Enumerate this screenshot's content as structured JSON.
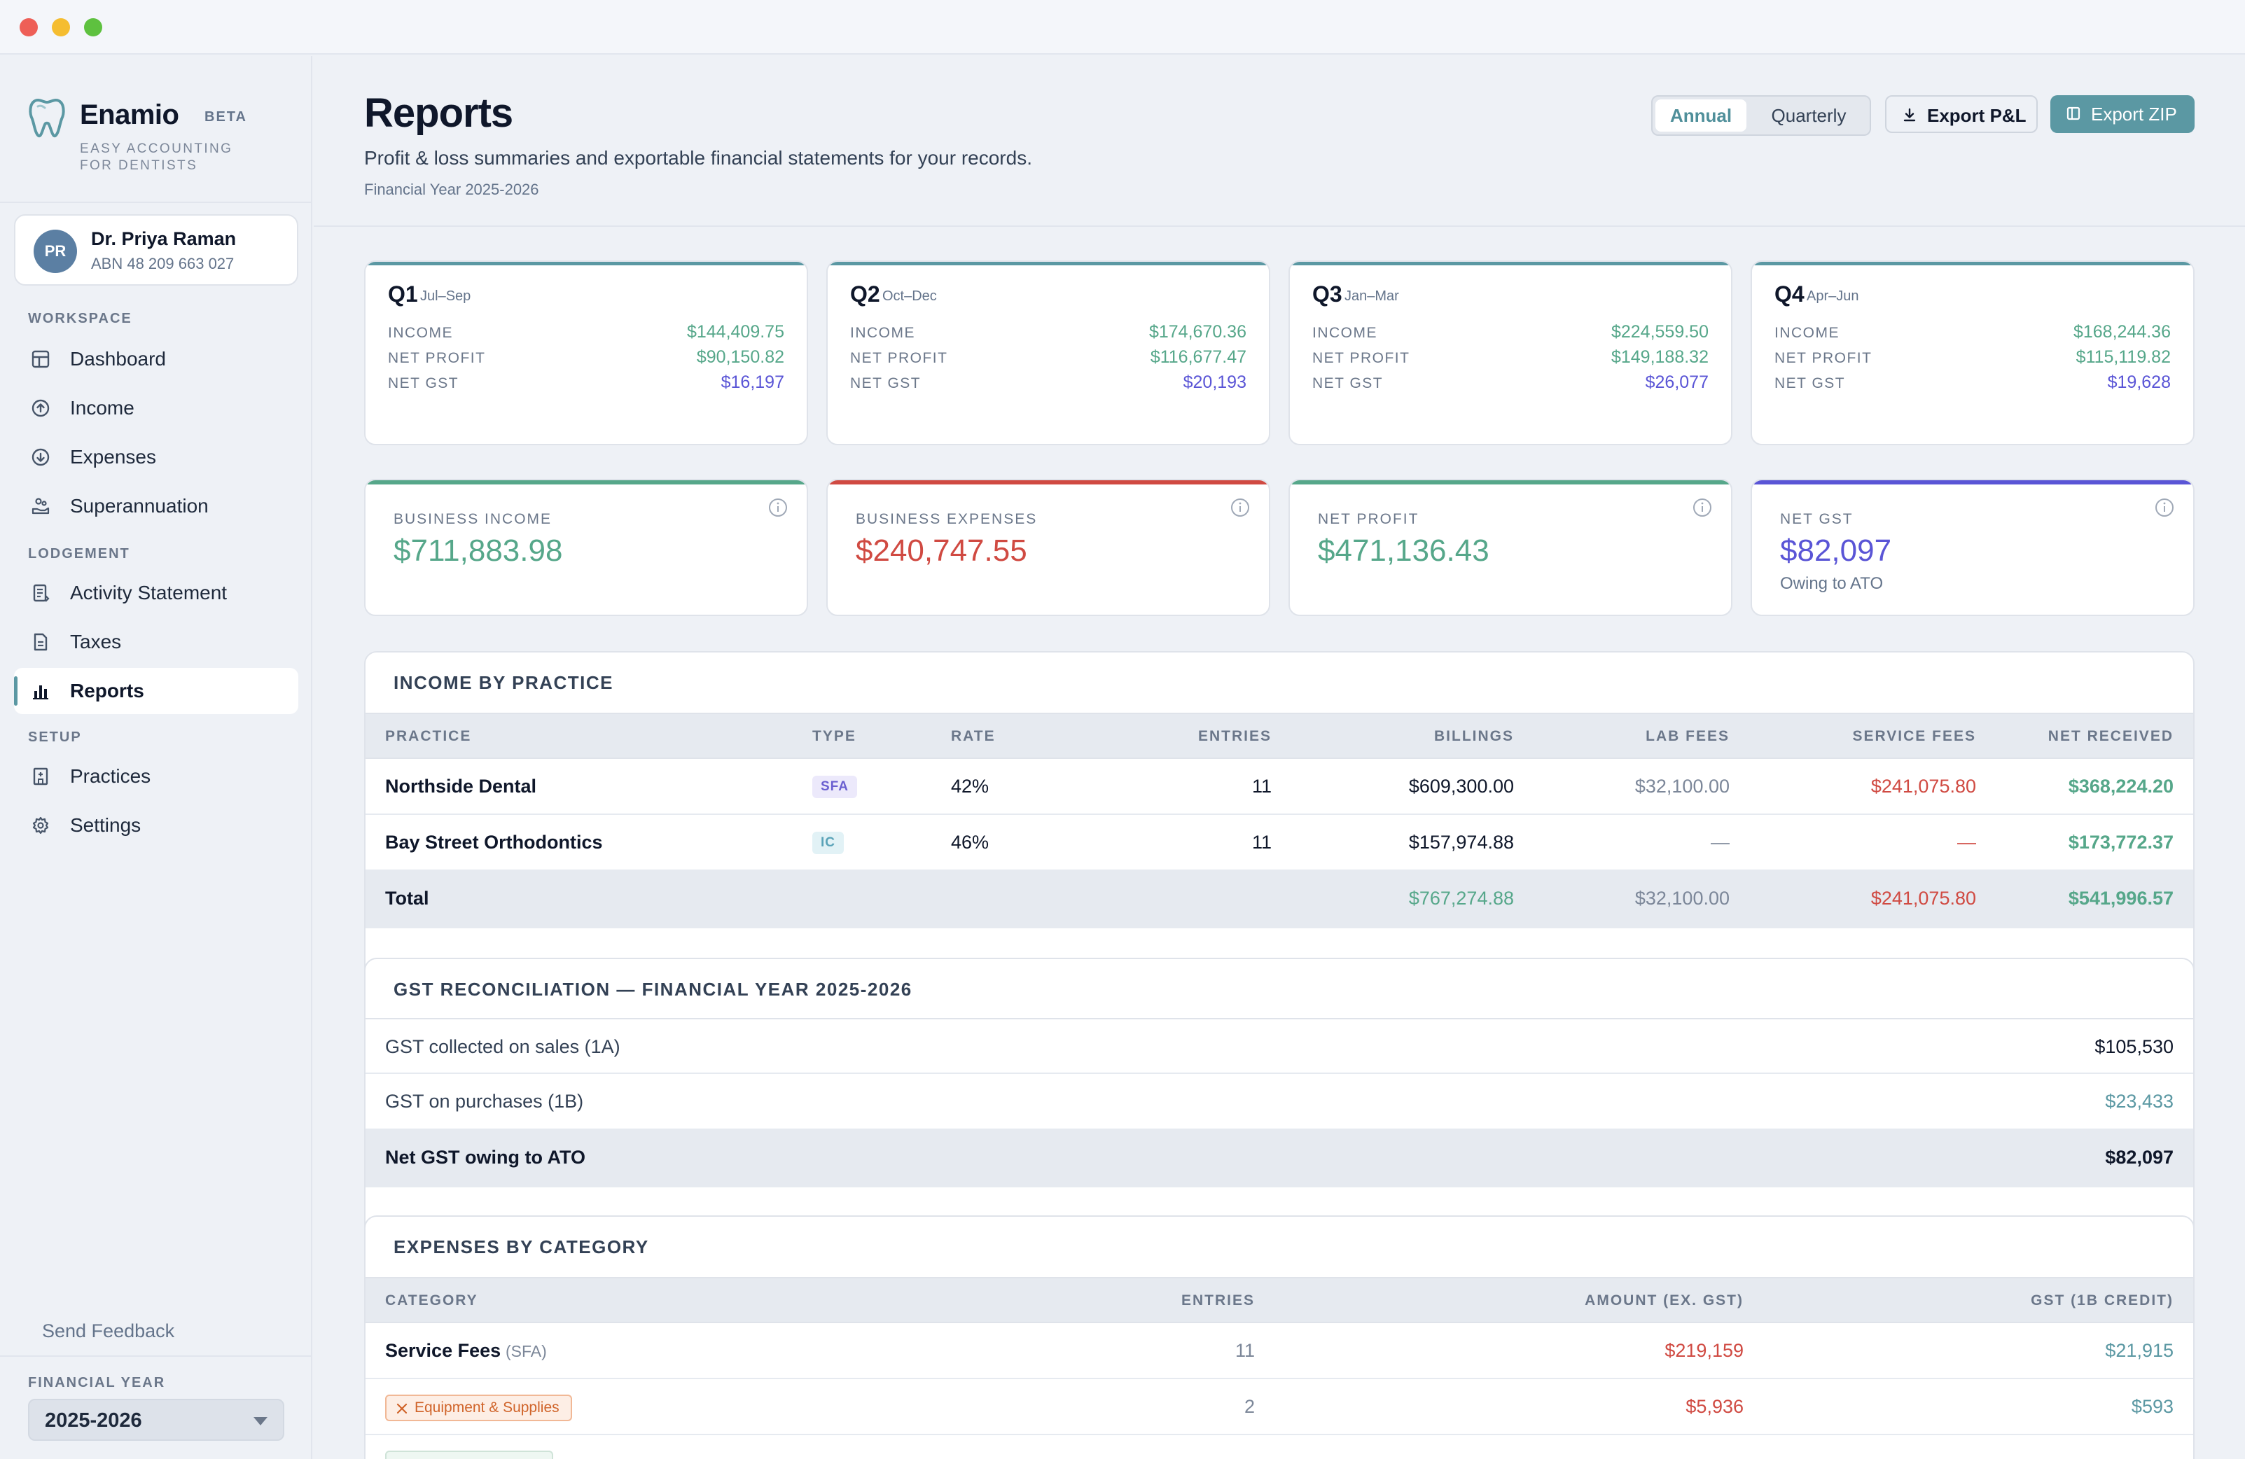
{
  "app": {
    "name": "Enamio",
    "badge": "BETA",
    "tagline_1": "EASY ACCOUNTING",
    "tagline_2": "FOR DENTISTS"
  },
  "user": {
    "initials": "PR",
    "name": "Dr. Priya Raman",
    "abn": "ABN 48 209 663 027"
  },
  "sidebar": {
    "sections": [
      {
        "label": "WORKSPACE"
      },
      {
        "label": "LODGEMENT"
      },
      {
        "label": "SETUP"
      }
    ],
    "items": [
      {
        "label": "Dashboard",
        "icon": "dashboard-icon"
      },
      {
        "label": "Income",
        "icon": "income-icon"
      },
      {
        "label": "Expenses",
        "icon": "expenses-icon"
      },
      {
        "label": "Superannuation",
        "icon": "superannuation-icon"
      },
      {
        "label": "Activity Statement",
        "icon": "activity-statement-icon"
      },
      {
        "label": "Taxes",
        "icon": "taxes-icon"
      },
      {
        "label": "Reports",
        "icon": "reports-icon",
        "active": true
      },
      {
        "label": "Practices",
        "icon": "practices-icon"
      },
      {
        "label": "Settings",
        "icon": "settings-icon"
      }
    ],
    "feedback": "Send Feedback",
    "fy_label": "FINANCIAL YEAR",
    "fy_value": "2025-2026"
  },
  "header": {
    "title": "Reports",
    "subtitle": "Profit & loss summaries and exportable financial statements for your records.",
    "fy": "Financial Year 2025-2026",
    "toggle": {
      "annual": "Annual",
      "quarterly": "Quarterly",
      "selected": "Annual"
    },
    "export_pl": "Export P&L",
    "export_zip": "Export ZIP"
  },
  "quarters": [
    {
      "name": "Q1",
      "range": "Jul–Sep",
      "income": "$144,409.75",
      "net_profit": "$90,150.82",
      "net_gst": "$16,197"
    },
    {
      "name": "Q2",
      "range": "Oct–Dec",
      "income": "$174,670.36",
      "net_profit": "$116,677.47",
      "net_gst": "$20,193"
    },
    {
      "name": "Q3",
      "range": "Jan–Mar",
      "income": "$224,559.50",
      "net_profit": "$149,188.32",
      "net_gst": "$26,077"
    },
    {
      "name": "Q4",
      "range": "Apr–Jun",
      "income": "$168,244.36",
      "net_profit": "$115,119.82",
      "net_gst": "$19,628"
    }
  ],
  "quarter_labels": {
    "income": "INCOME",
    "net_profit": "NET PROFIT",
    "net_gst": "NET GST"
  },
  "metrics": [
    {
      "label": "BUSINESS INCOME",
      "value": "$711,883.98",
      "color": "#56a78a"
    },
    {
      "label": "BUSINESS EXPENSES",
      "value": "$240,747.55",
      "color": "#d04a42"
    },
    {
      "label": "NET PROFIT",
      "value": "$471,136.43",
      "color": "#56a78a"
    },
    {
      "label": "NET GST",
      "value": "$82,097",
      "sub": "Owing to ATO",
      "color": "#5a55d6"
    }
  ],
  "income_by_practice": {
    "title": "INCOME BY PRACTICE",
    "columns": [
      "PRACTICE",
      "TYPE",
      "RATE",
      "ENTRIES",
      "BILLINGS",
      "LAB FEES",
      "SERVICE FEES",
      "NET RECEIVED"
    ],
    "rows": [
      {
        "practice": "Northside Dental",
        "type": "SFA",
        "rate": "42%",
        "entries": "11",
        "billings": "$609,300.00",
        "lab_fees": "$32,100.00",
        "service_fees": "$241,075.80",
        "net_received": "$368,224.20"
      },
      {
        "practice": "Bay Street Orthodontics",
        "type": "IC",
        "rate": "46%",
        "entries": "11",
        "billings": "$157,974.88",
        "lab_fees": "—",
        "service_fees": "—",
        "net_received": "$173,772.37"
      }
    ],
    "total": {
      "label": "Total",
      "billings": "$767,274.88",
      "lab_fees": "$32,100.00",
      "service_fees": "$241,075.80",
      "net_received": "$541,996.57"
    }
  },
  "gst": {
    "title": "GST RECONCILIATION — FINANCIAL YEAR 2025-2026",
    "rows": [
      {
        "label": "GST collected on sales (1A)",
        "value": "$105,530"
      },
      {
        "label": "GST on purchases (1B)",
        "value": "$23,433"
      }
    ],
    "total": {
      "label": "Net GST owing to ATO",
      "value": "$82,097"
    }
  },
  "expenses": {
    "title": "EXPENSES BY CATEGORY",
    "columns": [
      "CATEGORY",
      "ENTRIES",
      "AMOUNT (EX. GST)",
      "GST (1B CREDIT)"
    ],
    "rows": [
      {
        "category": "Service Fees",
        "sub": "(SFA)",
        "entries": "11",
        "amount": "$219,159",
        "gst": "$21,915"
      },
      {
        "category": "Equipment & Supplies",
        "entries": "2",
        "amount": "$5,936",
        "gst": "$593"
      }
    ]
  }
}
